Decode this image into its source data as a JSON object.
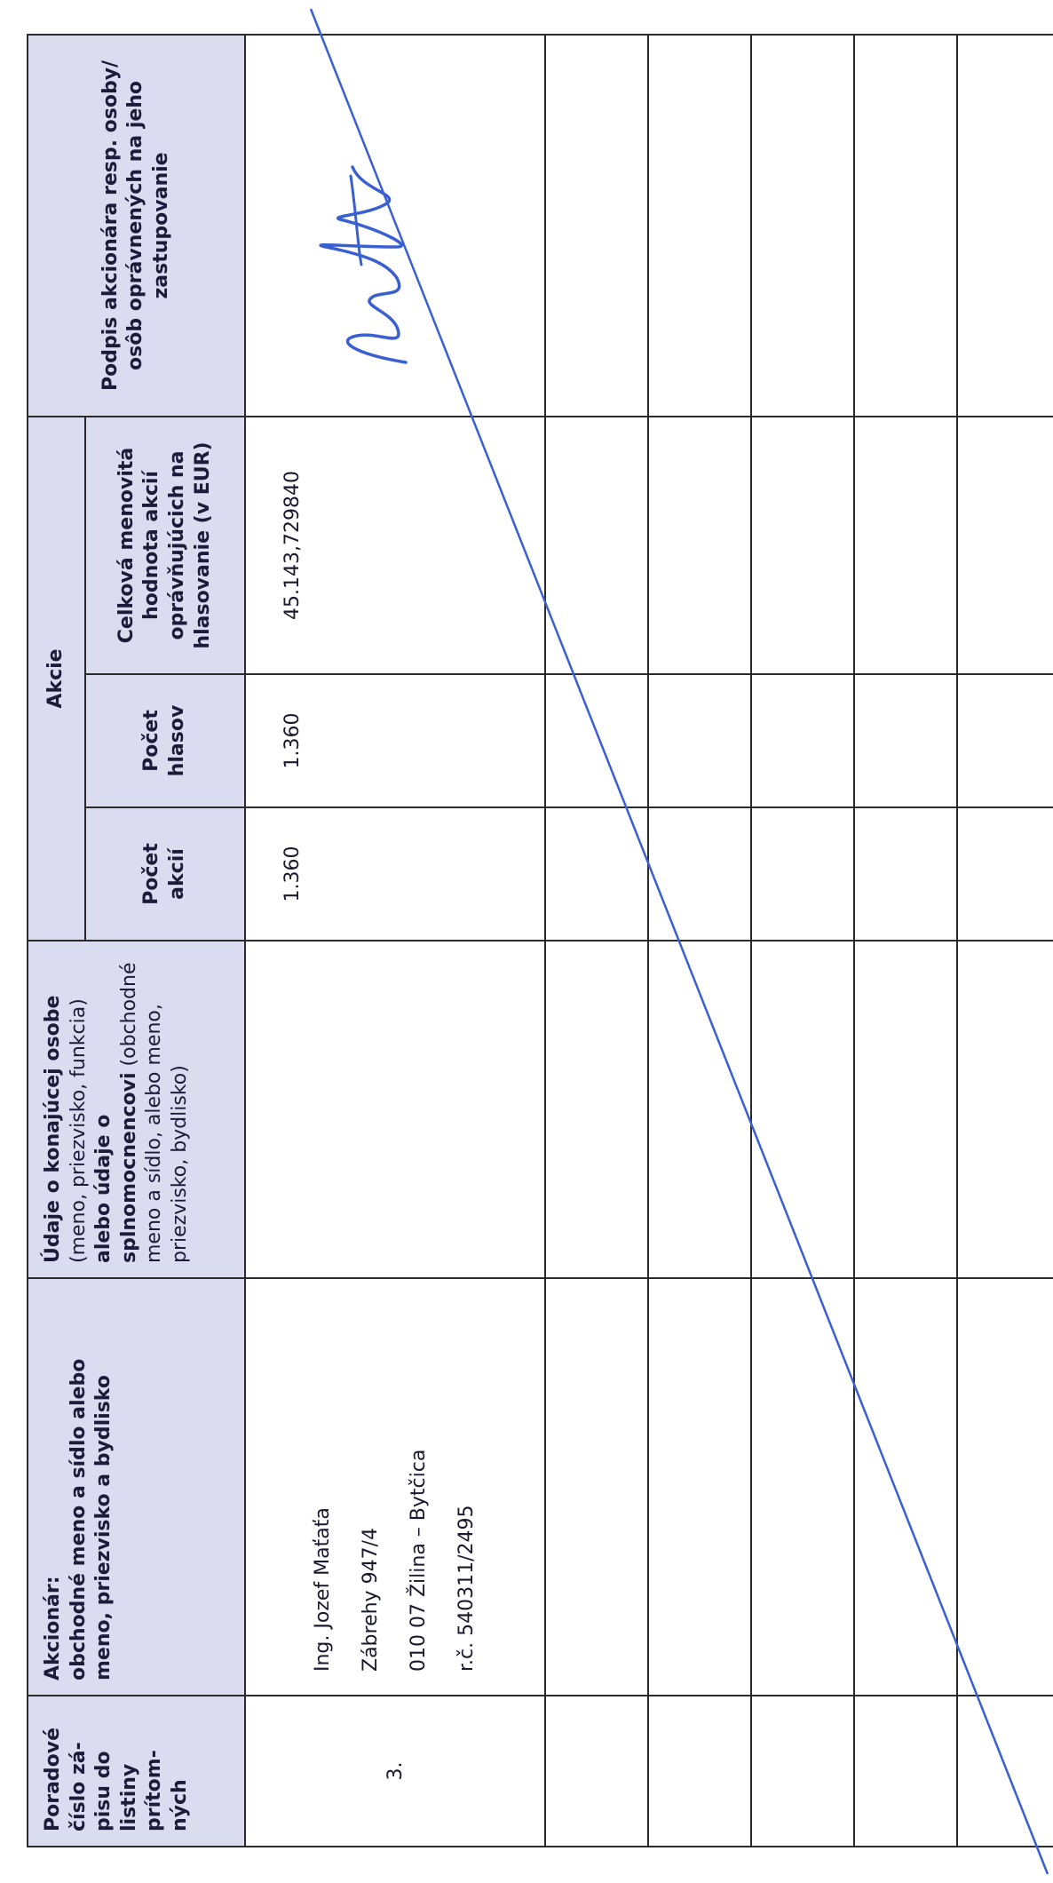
{
  "headers": {
    "col_order": [
      "Poradové",
      "číslo zá-",
      "pisu do",
      "listiny",
      "prítom-",
      "ných"
    ],
    "col_shareholder": {
      "label": "Akcionár:",
      "text": "obchodné meno a sídlo alebo meno, priezvisko a bydlisko"
    },
    "col_acting": {
      "bold1": "Údaje o konajúcej osobe",
      "normal1": " (meno, priezvisko, funkcia) ",
      "bold2": "alebo údaje o splnomocnencovi",
      "normal2": " (obchodné meno a sídlo, alebo meno, priezvisko, bydlisko)"
    },
    "shares_group": "Akcie",
    "col_share_count": "Počet akcií",
    "col_votes": "Počet hlasov",
    "col_nominal": "Celková menovitá hodnota akcií oprávňujúcich na hlasovanie (v EUR)",
    "col_signature": "Podpis akcionára resp. osoby/ osôb oprávnených na jeho zastupovanie"
  },
  "rows": [
    {
      "order": "3.",
      "shareholder_lines": [
        "Ing. Jozef Maťaťa",
        "Zábrehy 947/4",
        "010 07 Žilina – Bytčica",
        "r.č. 540311/2495"
      ],
      "acting": "",
      "share_count": "1.360",
      "votes": "1.360",
      "nominal": "45.143,729840",
      "signature": "handwritten signature"
    }
  ],
  "empty_rows": 5,
  "colors": {
    "header_bg": "#dcdcf0",
    "ink_blue": "#3a5fd0",
    "border": "#2b2b2b"
  }
}
